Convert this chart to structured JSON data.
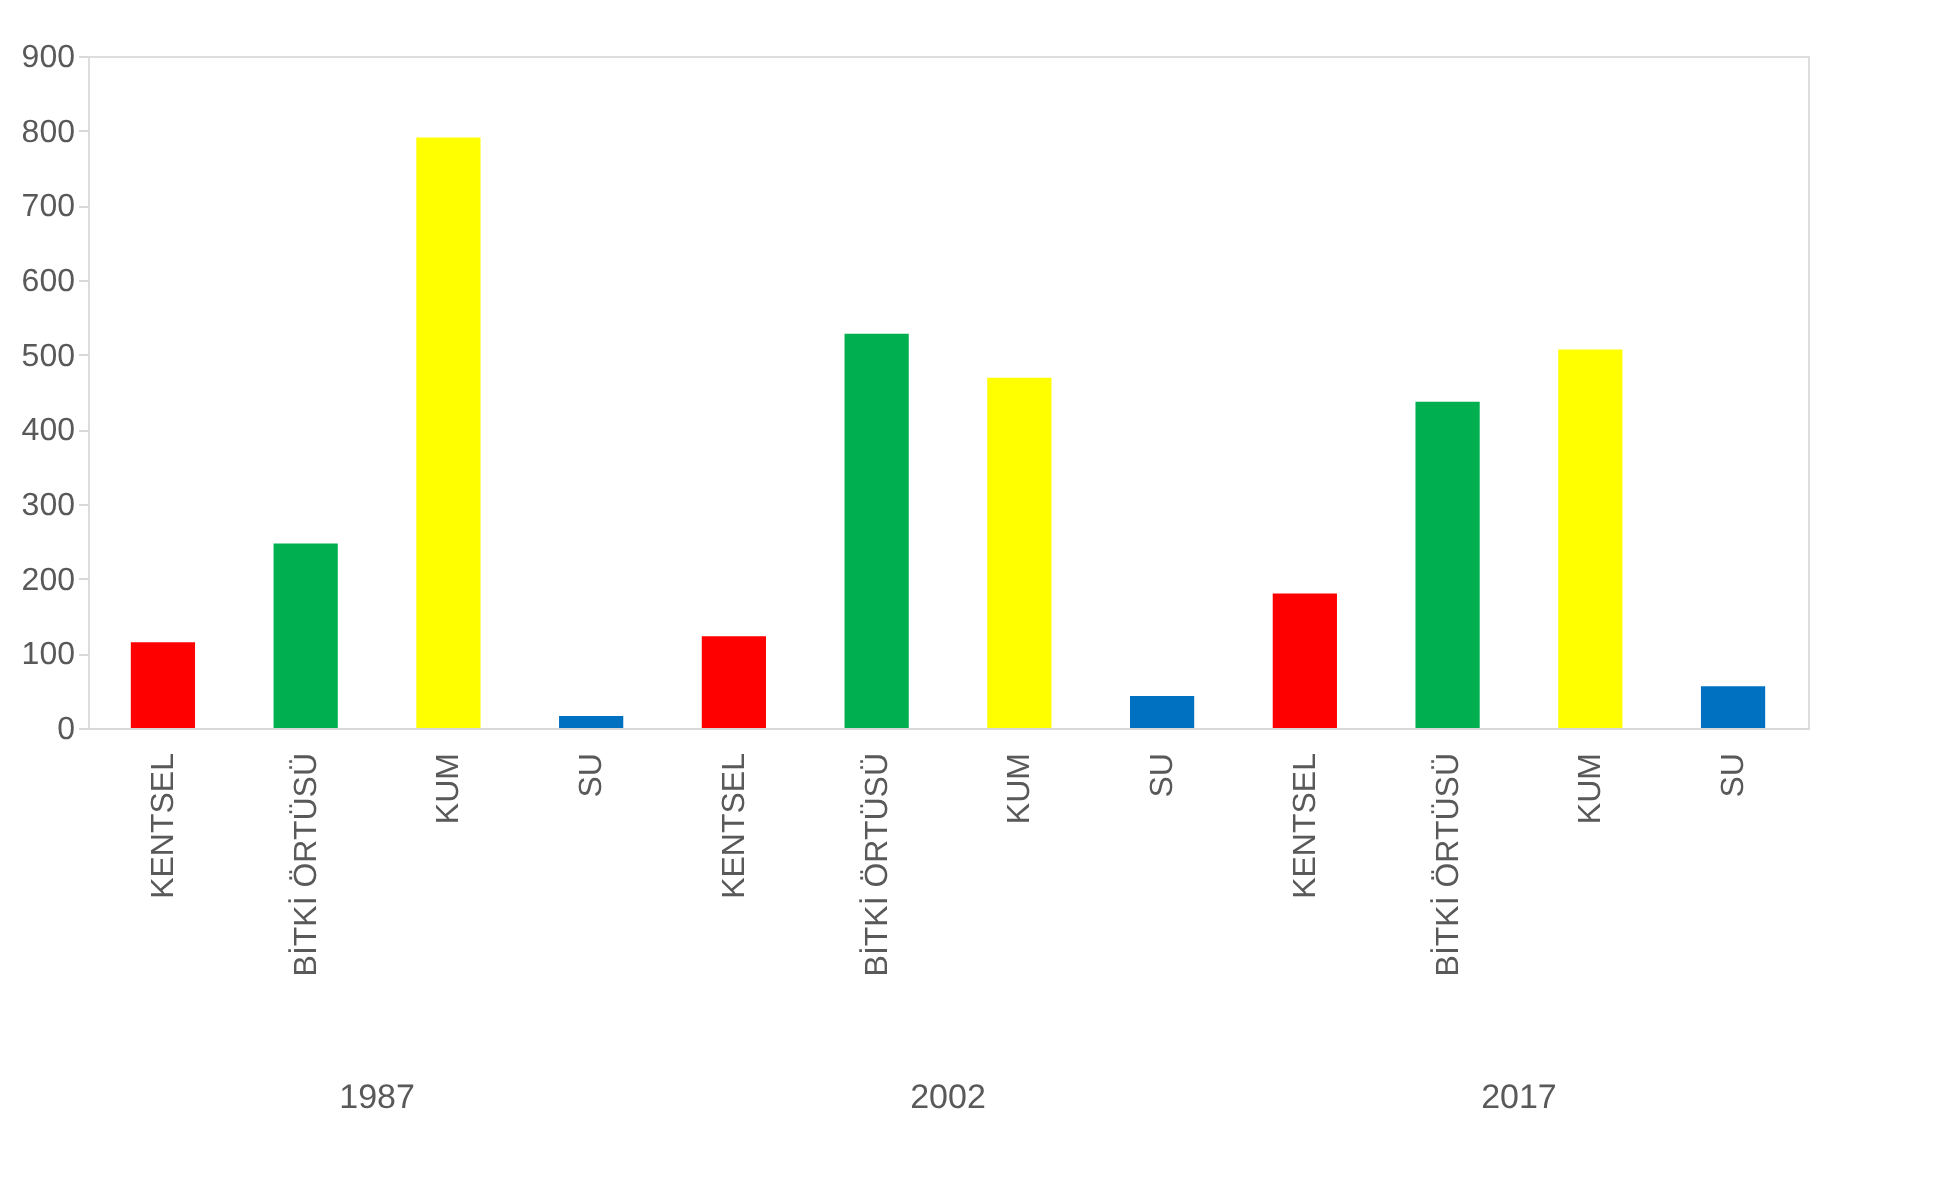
{
  "chart_data": {
    "type": "bar",
    "categories": [
      "KENTSEL",
      "BİTKİ ÖRTÜSÜ",
      "KUM",
      "SU",
      "KENTSEL",
      "BİTKİ ÖRTÜSÜ",
      "KUM",
      "SU",
      "KENTSEL",
      "BİTKİ ÖRTÜSÜ",
      "KUM",
      "SU"
    ],
    "values": [
      115,
      247,
      791,
      16,
      123,
      528,
      469,
      43,
      180,
      437,
      507,
      56
    ],
    "colors": [
      "#ff0000",
      "#00b050",
      "#ffff00",
      "#0070c0",
      "#ff0000",
      "#00b050",
      "#ffff00",
      "#0070c0",
      "#ff0000",
      "#00b050",
      "#ffff00",
      "#0070c0"
    ],
    "ylim": [
      0,
      900
    ],
    "yticks": [
      0,
      100,
      200,
      300,
      400,
      500,
      600,
      700,
      800,
      900
    ],
    "annotations": [
      "1987",
      "2002",
      "2017"
    ],
    "grid": false
  }
}
